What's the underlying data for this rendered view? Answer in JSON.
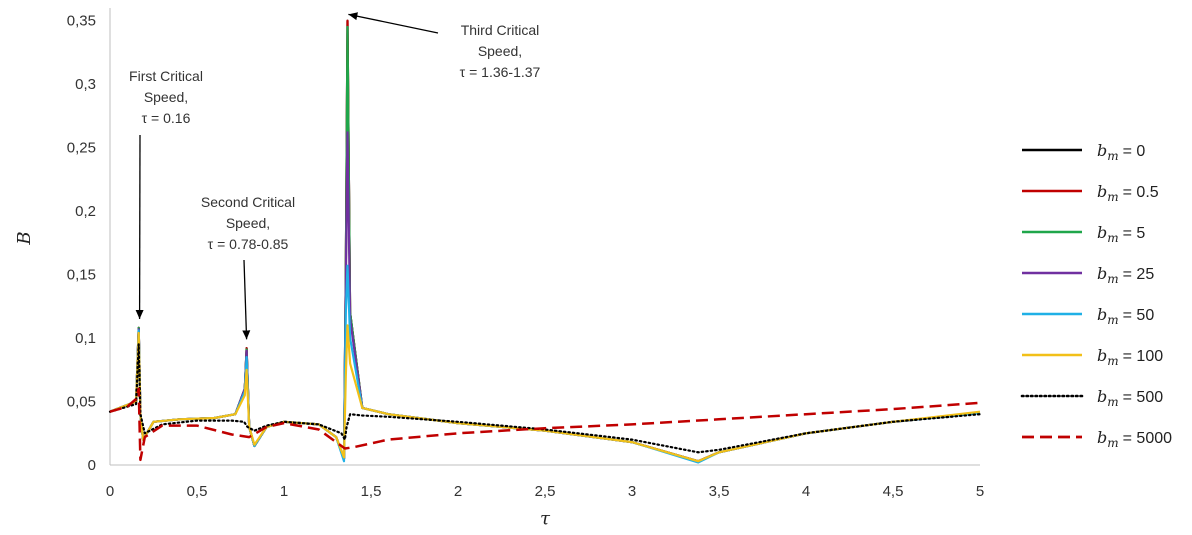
{
  "chart_data": {
    "type": "line",
    "xlabel": "τ",
    "ylabel": "B",
    "xlim": [
      0,
      5
    ],
    "ylim": [
      0,
      0.36
    ],
    "x_ticks": [
      "0",
      "0,5",
      "1",
      "1,5",
      "2",
      "2,5",
      "3",
      "3,5",
      "4",
      "4,5",
      "5"
    ],
    "x_tick_values": [
      0,
      0.5,
      1,
      1.5,
      2,
      2.5,
      3,
      3.5,
      4,
      4.5,
      5
    ],
    "y_ticks": [
      "0",
      "0,05",
      "0,1",
      "0,15",
      "0,2",
      "0,25",
      "0,3",
      "0,35"
    ],
    "y_tick_values": [
      0,
      0.05,
      0.1,
      0.15,
      0.2,
      0.25,
      0.3,
      0.35
    ],
    "grid": false,
    "legend_position": "right",
    "legend_symbol": "b",
    "legend_subscript": "m",
    "series": [
      {
        "name": "= 0",
        "color": "#000000",
        "dash": "solid",
        "x": [
          0,
          0.15,
          0.165,
          0.175,
          0.19,
          0.25,
          0.4,
          0.6,
          0.72,
          0.775,
          0.785,
          0.8,
          0.83,
          0.9,
          1.0,
          1.2,
          1.3,
          1.345,
          1.355,
          1.365,
          1.38,
          1.45,
          1.6,
          2.0,
          2.5,
          3.0,
          3.38,
          3.5,
          4.0,
          4.5,
          5.0
        ],
        "y": [
          0.042,
          0.05,
          0.108,
          0.04,
          0.02,
          0.034,
          0.036,
          0.037,
          0.04,
          0.06,
          0.092,
          0.03,
          0.015,
          0.03,
          0.034,
          0.032,
          0.022,
          0.005,
          0.15,
          0.35,
          0.12,
          0.045,
          0.04,
          0.033,
          0.027,
          0.018,
          0.003,
          0.01,
          0.025,
          0.034,
          0.041
        ]
      },
      {
        "name": "= 0.5",
        "color": "#c00000",
        "dash": "solid",
        "x": [
          0,
          0.15,
          0.165,
          0.175,
          0.19,
          0.25,
          0.4,
          0.6,
          0.72,
          0.775,
          0.785,
          0.8,
          0.83,
          0.9,
          1.0,
          1.2,
          1.3,
          1.345,
          1.355,
          1.365,
          1.38,
          1.45,
          1.6,
          2.0,
          2.5,
          3.0,
          3.38,
          3.5,
          4.0,
          4.5,
          5.0
        ],
        "y": [
          0.042,
          0.05,
          0.108,
          0.04,
          0.02,
          0.034,
          0.036,
          0.037,
          0.04,
          0.06,
          0.092,
          0.03,
          0.015,
          0.03,
          0.034,
          0.032,
          0.022,
          0.005,
          0.15,
          0.35,
          0.12,
          0.045,
          0.04,
          0.033,
          0.027,
          0.018,
          0.003,
          0.01,
          0.025,
          0.034,
          0.041
        ]
      },
      {
        "name": "= 5",
        "color": "#1fa64a",
        "dash": "solid",
        "x": [
          0,
          0.15,
          0.165,
          0.175,
          0.19,
          0.25,
          0.4,
          0.6,
          0.72,
          0.775,
          0.785,
          0.8,
          0.83,
          0.9,
          1.0,
          1.2,
          1.3,
          1.345,
          1.355,
          1.365,
          1.38,
          1.45,
          1.6,
          2.0,
          2.5,
          3.0,
          3.38,
          3.5,
          4.0,
          4.5,
          5.0
        ],
        "y": [
          0.042,
          0.05,
          0.108,
          0.04,
          0.02,
          0.034,
          0.036,
          0.037,
          0.04,
          0.06,
          0.091,
          0.03,
          0.015,
          0.03,
          0.034,
          0.032,
          0.022,
          0.005,
          0.15,
          0.345,
          0.12,
          0.045,
          0.04,
          0.033,
          0.027,
          0.018,
          0.003,
          0.01,
          0.025,
          0.034,
          0.041
        ]
      },
      {
        "name": "= 25",
        "color": "#7030a0",
        "dash": "solid",
        "x": [
          0,
          0.15,
          0.165,
          0.175,
          0.19,
          0.25,
          0.4,
          0.6,
          0.72,
          0.775,
          0.785,
          0.8,
          0.83,
          0.9,
          1.0,
          1.2,
          1.3,
          1.345,
          1.355,
          1.365,
          1.38,
          1.45,
          1.6,
          2.0,
          2.5,
          3.0,
          3.38,
          3.5,
          4.0,
          4.5,
          5.0
        ],
        "y": [
          0.042,
          0.05,
          0.107,
          0.04,
          0.02,
          0.034,
          0.036,
          0.037,
          0.04,
          0.06,
          0.09,
          0.03,
          0.015,
          0.03,
          0.034,
          0.032,
          0.022,
          0.005,
          0.14,
          0.262,
          0.115,
          0.045,
          0.04,
          0.033,
          0.027,
          0.018,
          0.003,
          0.01,
          0.025,
          0.034,
          0.041
        ]
      },
      {
        "name": "= 50",
        "color": "#1fb0e6",
        "dash": "solid",
        "x": [
          0,
          0.15,
          0.165,
          0.175,
          0.19,
          0.25,
          0.4,
          0.6,
          0.72,
          0.775,
          0.785,
          0.8,
          0.83,
          0.9,
          1.0,
          1.2,
          1.3,
          1.345,
          1.355,
          1.365,
          1.38,
          1.45,
          1.6,
          2.0,
          2.5,
          3.0,
          3.38,
          3.5,
          4.0,
          4.5,
          5.0
        ],
        "y": [
          0.042,
          0.05,
          0.106,
          0.04,
          0.02,
          0.034,
          0.036,
          0.037,
          0.04,
          0.058,
          0.085,
          0.03,
          0.015,
          0.03,
          0.034,
          0.032,
          0.022,
          0.003,
          0.12,
          0.157,
          0.1,
          0.045,
          0.04,
          0.033,
          0.027,
          0.018,
          0.002,
          0.01,
          0.025,
          0.034,
          0.041
        ]
      },
      {
        "name": "= 100",
        "color": "#f2c018",
        "dash": "solid",
        "x": [
          0,
          0.15,
          0.165,
          0.175,
          0.19,
          0.25,
          0.4,
          0.6,
          0.72,
          0.775,
          0.785,
          0.8,
          0.83,
          0.9,
          1.0,
          1.2,
          1.3,
          1.345,
          1.355,
          1.365,
          1.38,
          1.45,
          1.6,
          2.0,
          2.5,
          3.0,
          3.38,
          3.5,
          4.0,
          4.5,
          5.0
        ],
        "y": [
          0.042,
          0.05,
          0.104,
          0.04,
          0.02,
          0.034,
          0.036,
          0.037,
          0.04,
          0.055,
          0.075,
          0.03,
          0.016,
          0.03,
          0.034,
          0.032,
          0.022,
          0.006,
          0.07,
          0.11,
          0.08,
          0.045,
          0.04,
          0.033,
          0.027,
          0.018,
          0.003,
          0.01,
          0.025,
          0.034,
          0.042
        ]
      },
      {
        "name": "= 500",
        "color": "#000000",
        "dash": "dotted",
        "x": [
          0,
          0.15,
          0.165,
          0.175,
          0.2,
          0.3,
          0.5,
          0.7,
          0.77,
          0.79,
          0.83,
          0.9,
          1.0,
          1.2,
          1.33,
          1.35,
          1.36,
          1.38,
          1.45,
          1.6,
          2.0,
          2.5,
          3.0,
          3.38,
          3.5,
          4.0,
          4.5,
          5.0
        ],
        "y": [
          0.042,
          0.048,
          0.095,
          0.04,
          0.025,
          0.032,
          0.035,
          0.035,
          0.034,
          0.03,
          0.027,
          0.031,
          0.034,
          0.032,
          0.025,
          0.02,
          0.03,
          0.04,
          0.039,
          0.038,
          0.034,
          0.028,
          0.02,
          0.01,
          0.012,
          0.025,
          0.034,
          0.04
        ]
      },
      {
        "name": "= 5000",
        "color": "#c00000",
        "dash": "dashed",
        "x": [
          0,
          0.1,
          0.15,
          0.165,
          0.175,
          0.2,
          0.3,
          0.5,
          0.7,
          0.8,
          0.9,
          1.0,
          1.2,
          1.35,
          1.4,
          1.6,
          2.0,
          2.5,
          3.0,
          3.5,
          4.0,
          4.5,
          5.0
        ],
        "y": [
          0.042,
          0.046,
          0.052,
          0.06,
          0.004,
          0.022,
          0.031,
          0.031,
          0.024,
          0.022,
          0.03,
          0.033,
          0.028,
          0.013,
          0.014,
          0.02,
          0.025,
          0.029,
          0.032,
          0.036,
          0.04,
          0.044,
          0.049
        ]
      }
    ],
    "annotations": [
      {
        "lines": [
          "First Critical",
          "Speed,",
          "τ = 0.16"
        ],
        "target_x": 0.17,
        "target_y": 0.115
      },
      {
        "lines": [
          "Second Critical",
          "Speed,",
          "τ = 0.78-0.85"
        ],
        "target_x": 0.785,
        "target_y": 0.099
      },
      {
        "lines": [
          "Third Critical",
          "Speed,",
          "τ = 1.36-1.37"
        ],
        "target_x": 1.37,
        "target_y": 0.355
      }
    ]
  }
}
